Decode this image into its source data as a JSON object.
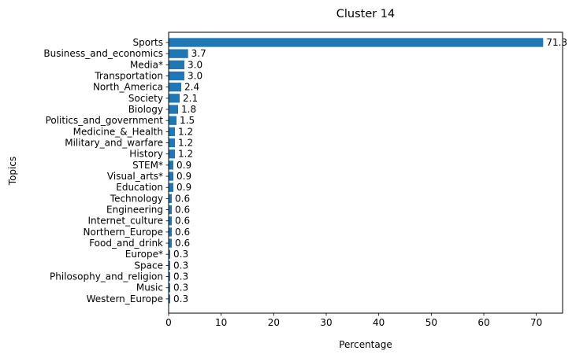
{
  "chart_data": {
    "type": "bar",
    "orientation": "horizontal",
    "title": "Cluster 14",
    "xlabel": "Percentage",
    "ylabel": "Topics",
    "xlim": [
      0,
      75
    ],
    "xticks": [
      0,
      10,
      20,
      30,
      40,
      50,
      60,
      70
    ],
    "grid": false,
    "color": "#1f77b4",
    "categories": [
      "Sports",
      "Business_and_economics",
      "Media*",
      "Transportation",
      "North_America",
      "Society",
      "Biology",
      "Politics_and_government",
      "Medicine_&_Health",
      "Military_and_warfare",
      "History",
      "STEM*",
      "Visual_arts*",
      "Education",
      "Technology",
      "Engineering",
      "Internet_culture",
      "Northern_Europe",
      "Food_and_drink",
      "Europe*",
      "Space",
      "Philosophy_and_religion",
      "Music",
      "Western_Europe"
    ],
    "values": [
      71.3,
      3.7,
      3.0,
      3.0,
      2.4,
      2.1,
      1.8,
      1.5,
      1.2,
      1.2,
      1.2,
      0.9,
      0.9,
      0.9,
      0.6,
      0.6,
      0.6,
      0.6,
      0.6,
      0.3,
      0.3,
      0.3,
      0.3,
      0.3
    ],
    "data_labels": [
      "71.3",
      "3.7",
      "3.0",
      "3.0",
      "2.4",
      "2.1",
      "1.8",
      "1.5",
      "1.2",
      "1.2",
      "1.2",
      "0.9",
      "0.9",
      "0.9",
      "0.6",
      "0.6",
      "0.6",
      "0.6",
      "0.6",
      "0.3",
      "0.3",
      "0.3",
      "0.3",
      "0.3"
    ]
  }
}
